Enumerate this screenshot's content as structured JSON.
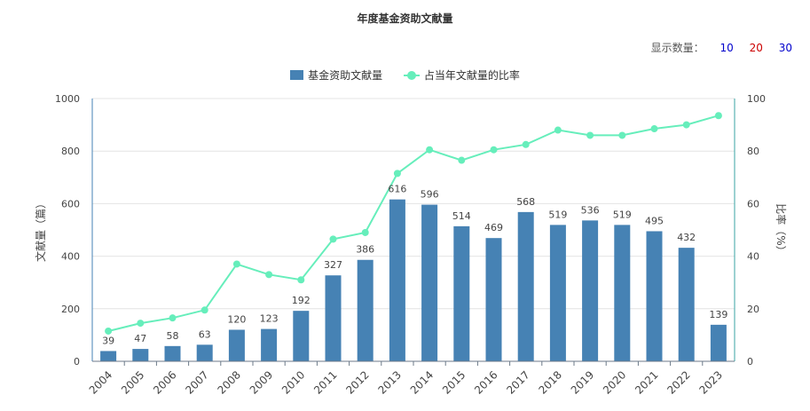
{
  "title": "年度基金资助文献量",
  "count_selector": {
    "label": "显示数量：",
    "options": [
      {
        "label": "10",
        "color": "#0000cc"
      },
      {
        "label": "20",
        "color": "#cc0000"
      },
      {
        "label": "30",
        "color": "#0000cc"
      }
    ]
  },
  "colors": {
    "bar": "#4682b4",
    "line": "#66eebb",
    "axis_left": "#4682b4",
    "axis_right": "#3aa3a3",
    "grid": "#e4e4e4"
  },
  "chart_data": {
    "type": "bar",
    "title": "年度基金资助文献量",
    "categories": [
      "2004",
      "2005",
      "2006",
      "2007",
      "2008",
      "2009",
      "2010",
      "2011",
      "2012",
      "2013",
      "2014",
      "2015",
      "2016",
      "2017",
      "2018",
      "2019",
      "2020",
      "2021",
      "2022",
      "2023"
    ],
    "series": [
      {
        "name": "基金资助文献量",
        "type": "bar",
        "axis": "left",
        "values": [
          39,
          47,
          58,
          63,
          120,
          123,
          192,
          327,
          386,
          616,
          596,
          514,
          469,
          568,
          519,
          536,
          519,
          495,
          432,
          139
        ]
      },
      {
        "name": "占当年文献量的比率",
        "type": "line",
        "axis": "right",
        "values": [
          11.5,
          14.5,
          16.5,
          19.5,
          37,
          33,
          31,
          46.5,
          49,
          71.5,
          80.5,
          76.5,
          80.5,
          82.5,
          88,
          86,
          86,
          88.5,
          90,
          93.5
        ]
      }
    ],
    "ylabel": "文献量（篇）",
    "ylabel_right": "比率（%）",
    "ylim": [
      0,
      1000
    ],
    "ylim_right": [
      0,
      100
    ],
    "yticks": [
      0,
      200,
      400,
      600,
      800,
      1000
    ],
    "yticks_right": [
      0,
      20,
      40,
      60,
      80,
      100
    ],
    "legend_position": "top-center",
    "grid": true
  }
}
